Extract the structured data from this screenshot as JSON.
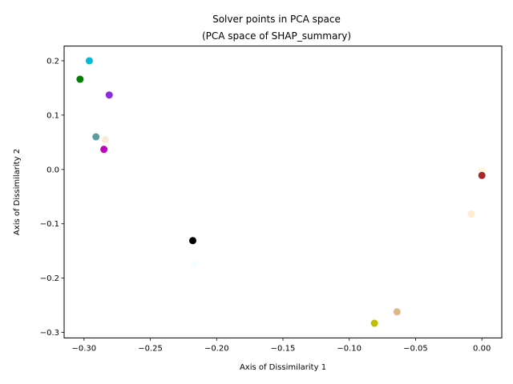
{
  "chart_data": {
    "type": "scatter",
    "title_line1": "Solver points in PCA space",
    "title_line2": "(PCA space of SHAP_summary)",
    "xlabel": "Axis of Dissimilarity 1",
    "ylabel": "Axis of Dissimilarity 2",
    "xlim": [
      -0.315,
      0.015
    ],
    "ylim": [
      -0.31,
      0.227
    ],
    "xticks": [
      {
        "value": -0.3,
        "label": "−0.30"
      },
      {
        "value": -0.25,
        "label": "−0.25"
      },
      {
        "value": -0.2,
        "label": "−0.20"
      },
      {
        "value": -0.15,
        "label": "−0.15"
      },
      {
        "value": -0.1,
        "label": "−0.10"
      },
      {
        "value": -0.05,
        "label": "−0.05"
      },
      {
        "value": 0.0,
        "label": "0.00"
      }
    ],
    "yticks": [
      {
        "value": 0.2,
        "label": "0.2"
      },
      {
        "value": 0.1,
        "label": "0.1"
      },
      {
        "value": 0.0,
        "label": "0.0"
      },
      {
        "value": -0.1,
        "label": "−0.1"
      },
      {
        "value": -0.2,
        "label": "−0.2"
      },
      {
        "value": -0.3,
        "label": "−0.3"
      }
    ],
    "grid": false,
    "legend": "none",
    "points": [
      {
        "x": -0.296,
        "y": 0.2,
        "color": "#00bcd4"
      },
      {
        "x": -0.303,
        "y": 0.166,
        "color": "#008000"
      },
      {
        "x": -0.281,
        "y": 0.137,
        "color": "#8a2be2"
      },
      {
        "x": -0.291,
        "y": 0.06,
        "color": "#5f9ea0"
      },
      {
        "x": -0.284,
        "y": 0.055,
        "color": "#faebd7"
      },
      {
        "x": -0.285,
        "y": 0.037,
        "color": "#c000c0"
      },
      {
        "x": 0.0,
        "y": -0.002,
        "color": "#fff8dc"
      },
      {
        "x": 0.0,
        "y": -0.011,
        "color": "#a52a2a"
      },
      {
        "x": -0.008,
        "y": -0.082,
        "color": "#ffebcd"
      },
      {
        "x": -0.218,
        "y": -0.131,
        "color": "#000000"
      },
      {
        "x": -0.217,
        "y": -0.174,
        "color": "#f0ffff"
      },
      {
        "x": -0.064,
        "y": -0.262,
        "color": "#deb887"
      },
      {
        "x": -0.081,
        "y": -0.283,
        "color": "#bfbf00"
      }
    ]
  }
}
